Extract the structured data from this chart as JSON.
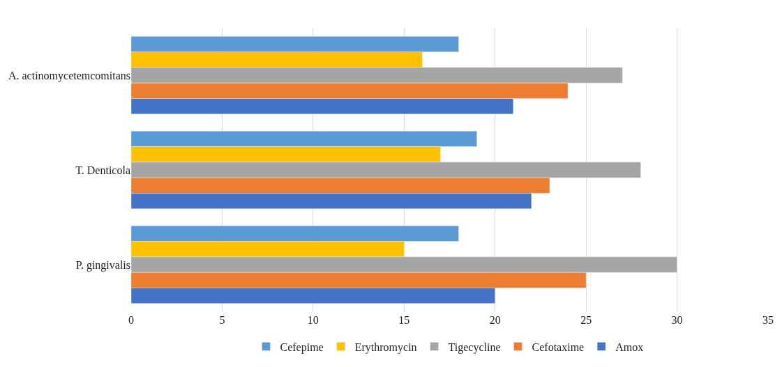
{
  "chart_data": {
    "type": "bar",
    "orientation": "horizontal",
    "categories": [
      "A. actinomycetemcomitans",
      "T. Denticola",
      "P. gingivalis"
    ],
    "series": [
      {
        "name": "Cefepime",
        "color": "#5b9bd5",
        "values": [
          18,
          19,
          18
        ]
      },
      {
        "name": "Erythromycin",
        "color": "#ffc000",
        "values": [
          16,
          17,
          15
        ]
      },
      {
        "name": "Tigecycline",
        "color": "#a5a5a5",
        "values": [
          27,
          28,
          30
        ]
      },
      {
        "name": "Cefotaxime",
        "color": "#ed7d31",
        "values": [
          24,
          23,
          25
        ]
      },
      {
        "name": "Amox",
        "color": "#4472c4",
        "values": [
          21,
          22,
          20
        ]
      }
    ],
    "xlim": [
      0,
      35
    ],
    "xticks": [
      0,
      5,
      10,
      15,
      20,
      25,
      30,
      35
    ],
    "grid": "x",
    "legend": "bottom"
  }
}
